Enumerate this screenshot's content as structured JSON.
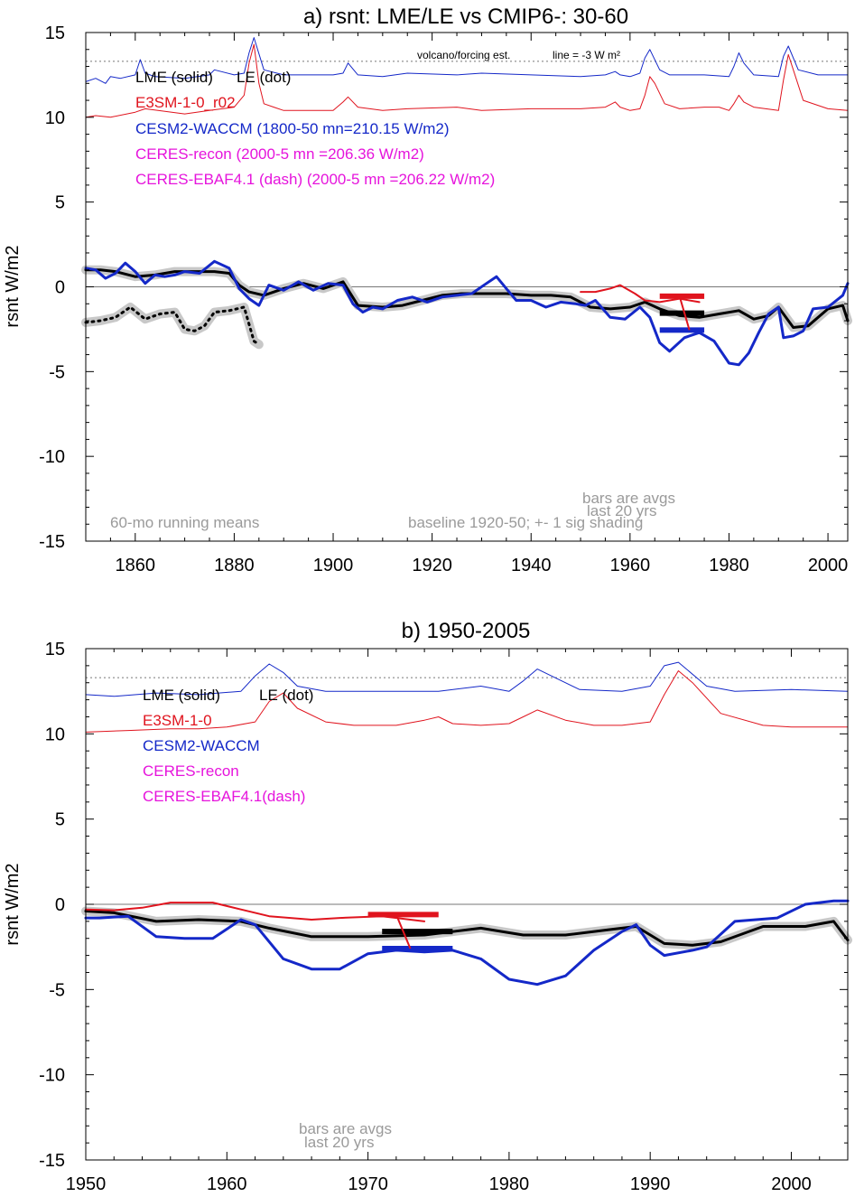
{
  "colors": {
    "lme": "#000000",
    "e3sm": "#e0141e",
    "cesm": "#1428c8",
    "ceres": "#e614dc",
    "shade": "#c8c8c8",
    "note": "#9a9a9a",
    "zero_line": "#777777",
    "forcing_dotted": "#777777"
  },
  "chart_data": [
    {
      "type": "line",
      "title": "a) rsnt: LME/LE vs CMIP6-: 30-60",
      "ylabel": "rsnt W/m2",
      "xlim": [
        1850,
        2004
      ],
      "ylim": [
        -15,
        15
      ],
      "xticks": [
        1860,
        1880,
        1900,
        1920,
        1940,
        1960,
        1980,
        2000
      ],
      "yticks": [
        15,
        10,
        5,
        0,
        -5,
        -10,
        -15
      ],
      "legend": [
        {
          "text": "LME (solid)",
          "color": "lme"
        },
        {
          "text": "LE (dot)",
          "color": "lme"
        },
        {
          "text": "E3SM-1-0_r02",
          "color": "e3sm"
        },
        {
          "text": "CESM2-WACCM (1800-50 mn=210.15 W/m2)",
          "color": "cesm"
        },
        {
          "text": "CERES-recon (2000-5 mn =206.36 W/m2)",
          "color": "ceres"
        },
        {
          "text": "CERES-EBAF4.1 (dash) (2000-5 mn =206.22 W/m2)",
          "color": "ceres"
        }
      ],
      "forcing_note_left": "volcano/forcing est.",
      "forcing_note_right": "line = -3 W m²",
      "forcing_ref_y": 13.3,
      "notes": {
        "running": "60-mo running means",
        "bars1": "bars are avgs",
        "bars2": "last 20 yrs",
        "baseline": "baseline 1920-50; +- 1 sig shading"
      },
      "series": [
        {
          "name": "LME (solid)",
          "color": "lme",
          "width": 3,
          "shade": true,
          "x": [
            1850,
            1853,
            1856,
            1860,
            1864,
            1868,
            1872,
            1876,
            1879,
            1881,
            1883,
            1886,
            1890,
            1894,
            1898,
            1902,
            1905,
            1910,
            1914,
            1918,
            1922,
            1926,
            1930,
            1935,
            1940,
            1944,
            1948,
            1952,
            1956,
            1960,
            1963,
            1966,
            1970,
            1974,
            1978,
            1982,
            1985,
            1988,
            1990,
            1993,
            1996,
            2000,
            2003,
            2004
          ],
          "y": [
            1.0,
            1.0,
            0.9,
            0.6,
            0.7,
            0.9,
            0.9,
            0.9,
            0.8,
            0.1,
            -0.3,
            -0.5,
            -0.1,
            0.2,
            -0.1,
            0.3,
            -1.1,
            -1.2,
            -1.1,
            -0.8,
            -0.5,
            -0.4,
            -0.4,
            -0.4,
            -0.5,
            -0.5,
            -0.6,
            -1.2,
            -1.3,
            -1.2,
            -0.9,
            -1.3,
            -1.7,
            -1.8,
            -1.6,
            -1.4,
            -1.9,
            -1.7,
            -1.2,
            -2.4,
            -2.3,
            -1.3,
            -1.1,
            -2.0
          ]
        },
        {
          "name": "LE (dot)",
          "color": "lme",
          "width": 3,
          "dotted": true,
          "shade": true,
          "x": [
            1850,
            1853,
            1856,
            1859,
            1862,
            1865,
            1868,
            1870,
            1872,
            1874,
            1876,
            1879,
            1882,
            1884,
            1885
          ],
          "y": [
            -2.1,
            -2.0,
            -1.8,
            -1.2,
            -1.9,
            -1.6,
            -1.5,
            -2.5,
            -2.6,
            -2.3,
            -1.5,
            -1.4,
            -1.2,
            -3.2,
            -3.4
          ]
        },
        {
          "name": "E3SM-1-0_r02",
          "color": "e3sm",
          "width": 2,
          "x": [
            1950,
            1953,
            1956,
            1958,
            1961,
            1963,
            1966,
            1970,
            1974
          ],
          "y": [
            -0.3,
            -0.3,
            -0.1,
            0.1,
            -0.4,
            -0.8,
            -0.9,
            -0.7,
            -0.9
          ]
        },
        {
          "name": "CESM2-WACCM",
          "color": "cesm",
          "width": 3,
          "x": [
            1850,
            1852,
            1854,
            1856,
            1858,
            1860,
            1862,
            1864,
            1866,
            1868,
            1870,
            1873,
            1876,
            1879,
            1881,
            1883,
            1885,
            1887,
            1890,
            1893,
            1896,
            1899,
            1902,
            1904,
            1906,
            1908,
            1910,
            1913,
            1916,
            1919,
            1922,
            1925,
            1928,
            1931,
            1933,
            1935,
            1937,
            1940,
            1943,
            1946,
            1949,
            1951,
            1953,
            1956,
            1959,
            1962,
            1964,
            1966,
            1968,
            1971,
            1974,
            1977,
            1980,
            1982,
            1984,
            1986,
            1988,
            1990,
            1991,
            1993,
            1995,
            1997,
            2000,
            2003,
            2004
          ],
          "y": [
            1.1,
            1.0,
            0.5,
            0.8,
            1.4,
            0.9,
            0.2,
            0.7,
            0.6,
            0.7,
            0.9,
            0.8,
            1.5,
            1.1,
            -0.1,
            -0.7,
            -1.1,
            0.1,
            -0.2,
            0.3,
            -0.2,
            0.2,
            0.1,
            -1.0,
            -1.5,
            -1.2,
            -1.3,
            -0.8,
            -0.6,
            -0.9,
            -0.6,
            -0.5,
            -0.4,
            0.2,
            0.6,
            -0.1,
            -0.8,
            -0.8,
            -1.2,
            -0.9,
            -1.0,
            -1.1,
            -0.8,
            -1.8,
            -1.9,
            -1.2,
            -1.8,
            -3.3,
            -3.8,
            -3.0,
            -2.7,
            -3.2,
            -4.5,
            -4.6,
            -3.9,
            -2.7,
            -1.6,
            -1.2,
            -3.0,
            -2.9,
            -2.6,
            -1.3,
            -1.2,
            -0.5,
            0.2
          ]
        },
        {
          "name": "volcano CESM2",
          "color": "cesm",
          "width": 1,
          "x": [
            1850,
            1852,
            1854,
            1855,
            1857,
            1860,
            1861,
            1862,
            1864,
            1870,
            1875,
            1876,
            1880,
            1882,
            1883,
            1884,
            1886,
            1890,
            1900,
            1902,
            1903,
            1905,
            1910,
            1915,
            1925,
            1930,
            1940,
            1950,
            1955,
            1957,
            1958,
            1960,
            1962,
            1963,
            1964,
            1966,
            1968,
            1975,
            1980,
            1981,
            1982,
            1983,
            1985,
            1990,
            1991,
            1992,
            1994,
            1998,
            2004
          ],
          "y": [
            12.1,
            12.3,
            12.0,
            12.4,
            12.3,
            12.5,
            13.4,
            12.6,
            12.4,
            12.3,
            12.5,
            12.8,
            12.5,
            12.6,
            13.8,
            14.7,
            12.8,
            12.5,
            12.5,
            12.6,
            13.2,
            12.5,
            12.4,
            12.6,
            12.5,
            12.6,
            12.5,
            12.4,
            12.5,
            12.7,
            12.5,
            12.4,
            12.6,
            13.5,
            14.0,
            12.8,
            12.5,
            12.5,
            12.4,
            13.0,
            13.8,
            13.2,
            12.5,
            12.4,
            13.6,
            14.2,
            12.8,
            12.5,
            12.5
          ]
        },
        {
          "name": "volcano E3SM",
          "color": "e3sm",
          "width": 1,
          "x": [
            1850,
            1852,
            1855,
            1860,
            1862,
            1870,
            1875,
            1880,
            1882,
            1883,
            1884,
            1885,
            1886,
            1888,
            1890,
            1900,
            1902,
            1903,
            1905,
            1910,
            1915,
            1925,
            1930,
            1940,
            1950,
            1955,
            1957,
            1958,
            1960,
            1962,
            1963,
            1964,
            1965,
            1967,
            1970,
            1975,
            1978,
            1980,
            1981,
            1982,
            1983,
            1985,
            1990,
            1991,
            1992,
            1993,
            1995,
            2000,
            2004
          ],
          "y": [
            10.0,
            10.1,
            10.0,
            10.3,
            10.5,
            10.2,
            10.4,
            10.6,
            11.3,
            13.2,
            14.3,
            12.0,
            10.8,
            10.6,
            10.4,
            10.4,
            10.9,
            11.2,
            10.6,
            10.4,
            10.5,
            10.6,
            10.4,
            10.5,
            10.5,
            10.6,
            10.9,
            10.6,
            10.4,
            10.5,
            11.3,
            12.4,
            12.0,
            10.8,
            10.5,
            10.6,
            10.6,
            10.4,
            10.8,
            11.3,
            10.9,
            10.6,
            10.4,
            12.2,
            13.7,
            12.8,
            11.0,
            10.5,
            10.4
          ]
        }
      ],
      "bars": [
        {
          "color": "e3sm",
          "x0": 1966,
          "x1": 1975,
          "y": -0.55
        },
        {
          "color": "lme",
          "x0": 1966,
          "x1": 1975,
          "y": -1.55
        },
        {
          "color": "cesm",
          "x0": 1966,
          "x1": 1975,
          "y": -2.55
        }
      ],
      "bar_link": {
        "color": "e3sm",
        "x0": 1970,
        "y0": -0.55,
        "x1": 1972,
        "y1": -2.55
      }
    },
    {
      "type": "line",
      "title": "b) 1950-2005",
      "ylabel": "rsnt W/m2",
      "xlim": [
        1950,
        2004
      ],
      "ylim": [
        -15,
        15
      ],
      "xticks": [
        1950,
        1960,
        1970,
        1980,
        1990,
        2000
      ],
      "yticks": [
        15,
        10,
        5,
        0,
        -5,
        -10,
        -15
      ],
      "legend": [
        {
          "text": "LME (solid)",
          "color": "lme"
        },
        {
          "text": "LE (dot)",
          "color": "lme"
        },
        {
          "text": "E3SM-1-0",
          "color": "e3sm"
        },
        {
          "text": "CESM2-WACCM",
          "color": "cesm"
        },
        {
          "text": "CERES-recon",
          "color": "ceres"
        },
        {
          "text": "CERES-EBAF4.1(dash)",
          "color": "ceres"
        }
      ],
      "forcing_ref_y": 13.3,
      "notes": {
        "bars1": "bars are avgs",
        "bars2": "last 20 yrs"
      },
      "series": [
        {
          "name": "LME (solid)",
          "color": "lme",
          "width": 3,
          "shade": true,
          "x": [
            1950,
            1952,
            1955,
            1958,
            1961,
            1963,
            1966,
            1970,
            1974,
            1978,
            1981,
            1984,
            1987,
            1989,
            1991,
            1993,
            1995,
            1998,
            2001,
            2003,
            2004
          ],
          "y": [
            -0.4,
            -0.5,
            -1.0,
            -0.9,
            -1.0,
            -1.4,
            -1.9,
            -1.9,
            -1.8,
            -1.4,
            -1.8,
            -1.8,
            -1.5,
            -1.3,
            -2.3,
            -2.4,
            -2.2,
            -1.3,
            -1.3,
            -1.0,
            -2.1
          ]
        },
        {
          "name": "E3SM-1-0",
          "color": "e3sm",
          "width": 2,
          "x": [
            1950,
            1952,
            1954,
            1956,
            1957,
            1959,
            1961,
            1963,
            1966,
            1968,
            1971,
            1973,
            1974
          ],
          "y": [
            -0.3,
            -0.35,
            -0.2,
            0.1,
            0.1,
            0.1,
            -0.3,
            -0.7,
            -0.9,
            -0.8,
            -0.7,
            -0.9,
            -1.0
          ]
        },
        {
          "name": "CESM2-WACCM",
          "color": "cesm",
          "width": 3,
          "x": [
            1950,
            1951,
            1953,
            1955,
            1957,
            1959,
            1961,
            1962,
            1964,
            1966,
            1968,
            1970,
            1972,
            1974,
            1976,
            1978,
            1980,
            1982,
            1984,
            1986,
            1988,
            1989,
            1990,
            1991,
            1993,
            1994,
            1996,
            1999,
            2001,
            2003,
            2004
          ],
          "y": [
            -0.8,
            -0.8,
            -0.7,
            -1.9,
            -2.0,
            -2.0,
            -0.9,
            -1.2,
            -3.2,
            -3.8,
            -3.8,
            -2.9,
            -2.7,
            -2.8,
            -2.7,
            -3.2,
            -4.4,
            -4.7,
            -4.2,
            -2.7,
            -1.6,
            -1.2,
            -2.4,
            -3.0,
            -2.7,
            -2.5,
            -1.0,
            -0.8,
            0.0,
            0.2,
            0.2
          ]
        },
        {
          "name": "volcano CESM2",
          "color": "cesm",
          "width": 1,
          "x": [
            1950,
            1952,
            1955,
            1958,
            1961,
            1962,
            1963,
            1964,
            1965,
            1967,
            1970,
            1975,
            1978,
            1980,
            1981,
            1982,
            1983,
            1985,
            1988,
            1990,
            1991,
            1992,
            1994,
            1996,
            2000,
            2004
          ],
          "y": [
            12.3,
            12.2,
            12.4,
            12.3,
            12.5,
            13.4,
            14.1,
            13.6,
            12.8,
            12.5,
            12.5,
            12.5,
            12.8,
            12.5,
            13.1,
            13.8,
            13.4,
            12.6,
            12.5,
            12.8,
            14.0,
            14.2,
            12.8,
            12.5,
            12.6,
            12.5
          ]
        },
        {
          "name": "volcano E3SM",
          "color": "e3sm",
          "width": 1,
          "x": [
            1950,
            1953,
            1956,
            1958,
            1960,
            1962,
            1963,
            1964,
            1965,
            1967,
            1969,
            1972,
            1974,
            1975,
            1976,
            1978,
            1980,
            1981,
            1982,
            1984,
            1986,
            1988,
            1990,
            1991,
            1992,
            1993,
            1995,
            1998,
            2000,
            2004
          ],
          "y": [
            10.1,
            10.2,
            10.3,
            10.3,
            10.4,
            10.7,
            11.9,
            12.4,
            11.5,
            10.7,
            10.5,
            10.5,
            10.8,
            11.0,
            10.6,
            10.5,
            10.6,
            11.0,
            11.4,
            10.8,
            10.5,
            10.5,
            10.7,
            12.3,
            13.7,
            13.0,
            11.2,
            10.5,
            10.4,
            10.4
          ]
        }
      ],
      "bars": [
        {
          "color": "e3sm",
          "x0": 1970,
          "x1": 1975,
          "y": -0.6
        },
        {
          "color": "lme",
          "x0": 1971,
          "x1": 1976,
          "y": -1.6
        },
        {
          "color": "cesm",
          "x0": 1971,
          "x1": 1976,
          "y": -2.6
        }
      ],
      "bar_link": {
        "color": "e3sm",
        "x0": 1972,
        "y0": -0.6,
        "x1": 1973,
        "y1": -2.6
      }
    }
  ]
}
